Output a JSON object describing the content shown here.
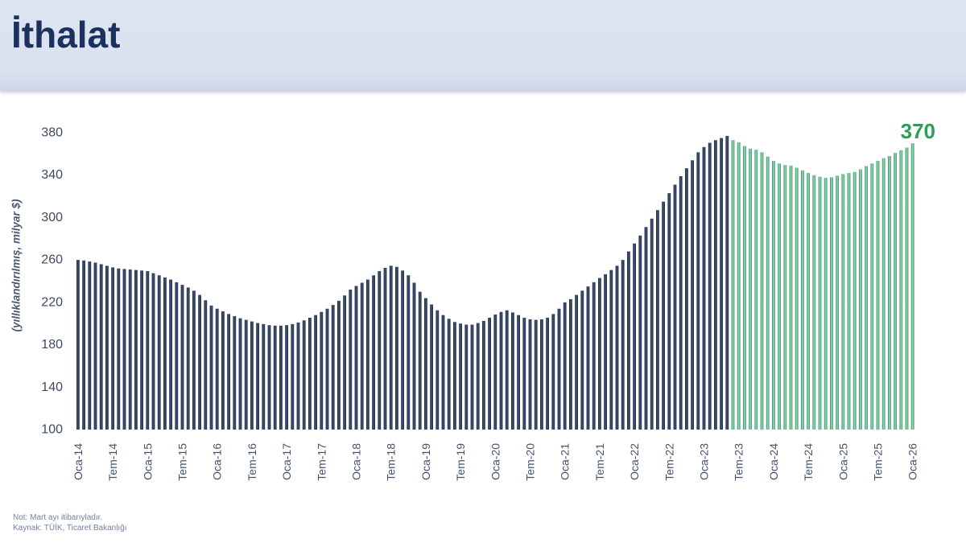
{
  "header": {
    "title": "İthalat"
  },
  "chart_data": {
    "type": "bar",
    "title": "İthalat",
    "ylabel": "(yıllıklandırılmış, milyar $)",
    "ylim": [
      100,
      380
    ],
    "yticks": [
      380,
      340,
      300,
      260,
      220,
      180,
      140,
      100
    ],
    "grid": false,
    "legend": false,
    "frequency": "monthly",
    "x_tick_every": 6,
    "x_tick_labels": [
      "Oca-14",
      "Tem-14",
      "Oca-15",
      "Tem-15",
      "Oca-16",
      "Tem-16",
      "Oca-17",
      "Tem-17",
      "Oca-18",
      "Tem-18",
      "Oca-19",
      "Tem-19",
      "Oca-20",
      "Tem-20",
      "Oca-21",
      "Tem-21",
      "Oca-22",
      "Tem-22",
      "Oca-23",
      "Tem-23",
      "Oca-24",
      "Tem-24",
      "Oca-25",
      "Tem-25",
      "Oca-26"
    ],
    "series": [
      {
        "id": "actual",
        "color_fill": "#2b3a55",
        "start": "Oca-14",
        "end": "May-23",
        "values": [
          260,
          259.5,
          258.5,
          257.5,
          256,
          254.5,
          253,
          252,
          251.5,
          251,
          250.5,
          250,
          249.5,
          247.5,
          245.5,
          243.5,
          241.5,
          239,
          236.5,
          234,
          231,
          227,
          222,
          217,
          214,
          211.5,
          209,
          207,
          205,
          203.5,
          202,
          200.5,
          199.5,
          198.5,
          198,
          198,
          198.5,
          199.5,
          201,
          203,
          205.5,
          208,
          211,
          214,
          217.5,
          221.5,
          226.5,
          232,
          235.5,
          238.5,
          241.5,
          245.5,
          249.5,
          252.5,
          254.5,
          253.5,
          250,
          245.5,
          238.5,
          230,
          224,
          218,
          212.5,
          208,
          204.5,
          201.5,
          200,
          199,
          199,
          200.5,
          202.5,
          205.5,
          208.5,
          211,
          212.5,
          210.5,
          208,
          205.5,
          204,
          203.5,
          204,
          205.5,
          209,
          214,
          220,
          223,
          227,
          231,
          235,
          239,
          243,
          246.5,
          250.5,
          254.5,
          260,
          268,
          275.5,
          283,
          291,
          299,
          307,
          315,
          323,
          331,
          339,
          346.5,
          354,
          361.5,
          366.5,
          370.5,
          373,
          375,
          377
        ]
      },
      {
        "id": "forecast",
        "color_fill": "#65b78b",
        "start": "Haz-23",
        "end": "Oca-26",
        "values": [
          373,
          371,
          367.5,
          365,
          364,
          361.5,
          357.5,
          353.5,
          351,
          349.5,
          349,
          347,
          344.5,
          342,
          340,
          338.5,
          337.5,
          338,
          339.5,
          341,
          342,
          343,
          345.5,
          348.5,
          351,
          353.5,
          356,
          358,
          361,
          363.5,
          366,
          370
        ]
      }
    ],
    "last_value_label": "370",
    "last_value_color": "#2e9e57"
  },
  "notes": {
    "note": "Not: Mart ayı itibarıyladır.",
    "source": "Kaynak: TÜİK, Ticaret Bakanlığı"
  }
}
